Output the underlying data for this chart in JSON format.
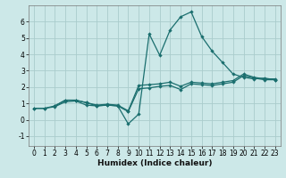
{
  "title": "",
  "xlabel": "Humidex (Indice chaleur)",
  "ylabel": "",
  "bg_color": "#cce8e8",
  "grid_color": "#aacccc",
  "line_color": "#1a6e6e",
  "xlim": [
    -0.5,
    23.5
  ],
  "ylim": [
    -1.6,
    7.0
  ],
  "xticks": [
    0,
    1,
    2,
    3,
    4,
    5,
    6,
    7,
    8,
    9,
    10,
    11,
    12,
    13,
    14,
    15,
    16,
    17,
    18,
    19,
    20,
    21,
    22,
    23
  ],
  "yticks": [
    -1,
    0,
    1,
    2,
    3,
    4,
    5,
    6
  ],
  "line1_x": [
    0,
    1,
    2,
    3,
    4,
    5,
    6,
    7,
    8,
    9,
    10,
    11,
    12,
    13,
    14,
    15,
    16,
    17,
    18,
    19,
    20,
    21,
    22,
    23
  ],
  "line1_y": [
    0.7,
    0.7,
    0.8,
    1.1,
    1.15,
    0.9,
    0.85,
    0.9,
    0.85,
    0.5,
    1.9,
    1.95,
    2.05,
    2.1,
    1.85,
    2.2,
    2.15,
    2.1,
    2.2,
    2.3,
    2.7,
    2.55,
    2.45,
    2.45
  ],
  "line2_x": [
    0,
    1,
    2,
    3,
    4,
    5,
    6,
    7,
    8,
    9,
    10,
    11,
    12,
    13,
    14,
    15,
    16,
    17,
    18,
    19,
    20,
    21,
    22,
    23
  ],
  "line2_y": [
    0.7,
    0.7,
    0.85,
    1.2,
    1.2,
    1.05,
    0.9,
    0.95,
    0.9,
    0.55,
    2.1,
    2.15,
    2.2,
    2.3,
    2.05,
    2.3,
    2.25,
    2.2,
    2.3,
    2.4,
    2.8,
    2.6,
    2.5,
    2.5
  ],
  "line3_x": [
    2,
    3,
    4,
    5,
    6,
    7,
    8,
    9,
    10,
    11,
    12,
    13,
    14,
    15,
    16,
    17,
    18,
    19,
    20,
    21,
    22,
    23
  ],
  "line3_y": [
    0.85,
    1.2,
    1.2,
    1.05,
    0.85,
    0.9,
    0.85,
    -0.25,
    0.35,
    5.25,
    3.95,
    5.5,
    6.3,
    6.6,
    5.1,
    4.2,
    3.5,
    2.8,
    2.6,
    2.5,
    2.55,
    2.45
  ],
  "figsize": [
    3.2,
    2.0
  ],
  "dpi": 100
}
